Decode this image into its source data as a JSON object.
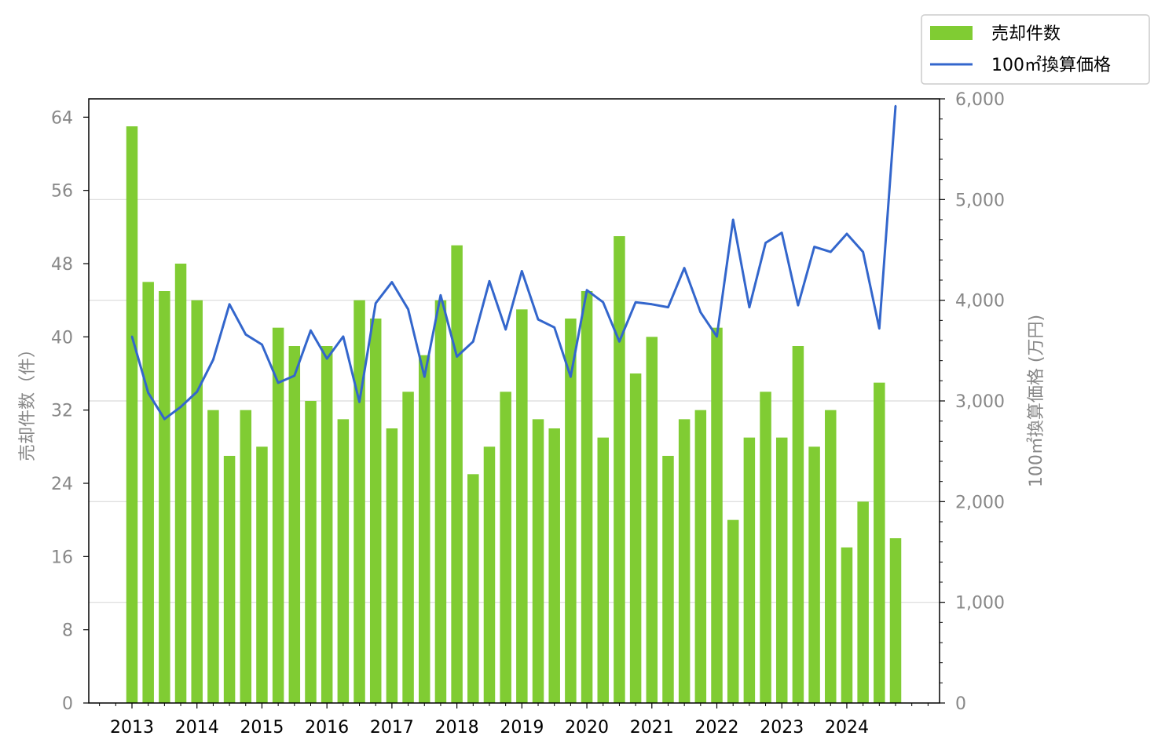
{
  "chart_data": {
    "type": "bar+line",
    "x": [
      "2013 Q1",
      "2013 Q2",
      "2013 Q3",
      "2013 Q4",
      "2014 Q1",
      "2014 Q2",
      "2014 Q3",
      "2014 Q4",
      "2015 Q1",
      "2015 Q2",
      "2015 Q3",
      "2015 Q4",
      "2016 Q1",
      "2016 Q2",
      "2016 Q3",
      "2016 Q4",
      "2017 Q1",
      "2017 Q2",
      "2017 Q3",
      "2017 Q4",
      "2018 Q1",
      "2018 Q2",
      "2018 Q3",
      "2018 Q4",
      "2019 Q1",
      "2019 Q2",
      "2019 Q3",
      "2019 Q4",
      "2020 Q1",
      "2020 Q2",
      "2020 Q3",
      "2020 Q4",
      "2021 Q1",
      "2021 Q2",
      "2021 Q3",
      "2021 Q4",
      "2022 Q1",
      "2022 Q2",
      "2022 Q3",
      "2022 Q4",
      "2023 Q1",
      "2023 Q2",
      "2023 Q3",
      "2023 Q4",
      "2024 Q1",
      "2024 Q2",
      "2024 Q3",
      "2024 Q4"
    ],
    "xticks": [
      "2013",
      "2014",
      "2015",
      "2016",
      "2017",
      "2018",
      "2019",
      "2020",
      "2021",
      "2022",
      "2023",
      "2024"
    ],
    "series": [
      {
        "name": "売却件数",
        "type": "bar",
        "axis": "left",
        "color": "#80cc33",
        "values": [
          63,
          46,
          45,
          48,
          44,
          32,
          27,
          32,
          28,
          41,
          39,
          33,
          39,
          31,
          44,
          42,
          30,
          34,
          38,
          44,
          50,
          25,
          28,
          34,
          43,
          31,
          30,
          42,
          45,
          29,
          51,
          36,
          40,
          27,
          31,
          32,
          41,
          20,
          29,
          34,
          29,
          39,
          28,
          32,
          17,
          22,
          35,
          18
        ]
      },
      {
        "name": "100㎡換算価格",
        "type": "line",
        "axis": "right",
        "color": "#3366cc",
        "values": [
          3640,
          3080,
          2820,
          2940,
          3090,
          3410,
          3960,
          3660,
          3560,
          3180,
          3250,
          3700,
          3420,
          3640,
          2990,
          3970,
          4180,
          3910,
          3240,
          4050,
          3440,
          3590,
          4190,
          3710,
          4290,
          3810,
          3730,
          3240,
          4100,
          3980,
          3590,
          3980,
          3960,
          3930,
          4320,
          3880,
          3640,
          4800,
          3930,
          4570,
          4670,
          3950,
          4530,
          4480,
          4660,
          4480,
          3720,
          5930
        ]
      }
    ],
    "yleft": {
      "label": "売却件数（件）",
      "lim": [
        0,
        66
      ],
      "ticks": [
        0,
        8,
        16,
        24,
        32,
        40,
        48,
        56,
        64
      ]
    },
    "yright": {
      "label": "100㎡換算価格 (万円)",
      "lim": [
        0,
        6000
      ],
      "ticks": [
        0,
        1000,
        2000,
        3000,
        4000,
        5000,
        6000
      ],
      "tick_labels": [
        "0",
        "1,000",
        "2,000",
        "3,000",
        "4,000",
        "5,000",
        "6,000"
      ]
    },
    "grid": true,
    "legend": "top-right"
  }
}
